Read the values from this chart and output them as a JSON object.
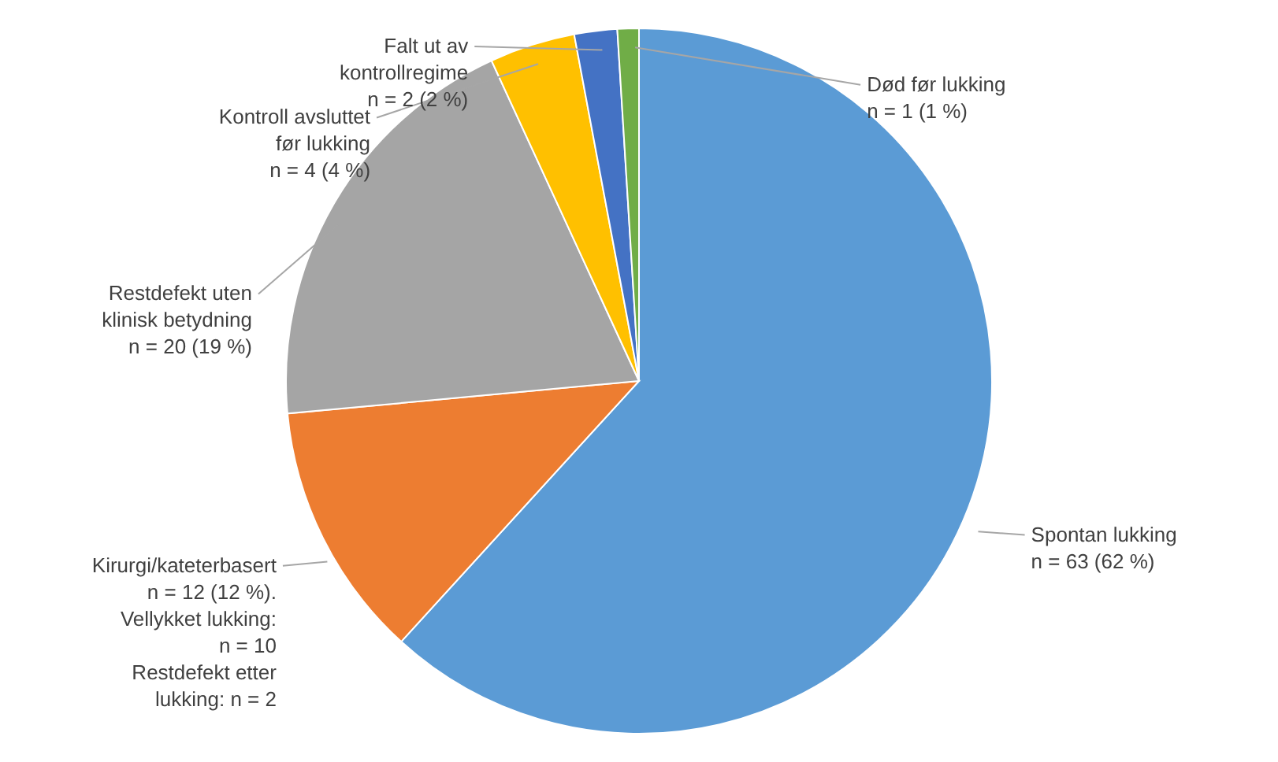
{
  "chart_data": {
    "type": "pie",
    "categories": [
      "Spontan lukking",
      "Kirurgi/kateterbasert",
      "Restdefekt uten\nklinisk betydning",
      "Kontroll avsluttet\nfør lukking",
      "Falt ut av\nkontrollregime",
      "Død før lukking"
    ],
    "values": [
      63,
      12,
      20,
      4,
      2,
      1
    ],
    "colors": [
      "#5b9bd5",
      "#ed7d31",
      "#a5a5a5",
      "#ffc000",
      "#4472c4",
      "#70ad47"
    ],
    "value_labels": [
      "n = 63 (62 %)",
      "n = 12 (12 %).\nVellykket lukking:\nn = 10\nRestdefekt etter\nlukking: n = 2",
      "n = 20 (19 %)",
      "n = 4 (4 %)",
      "n = 2 (2 %)",
      "n = 1 (1 %)"
    ]
  }
}
